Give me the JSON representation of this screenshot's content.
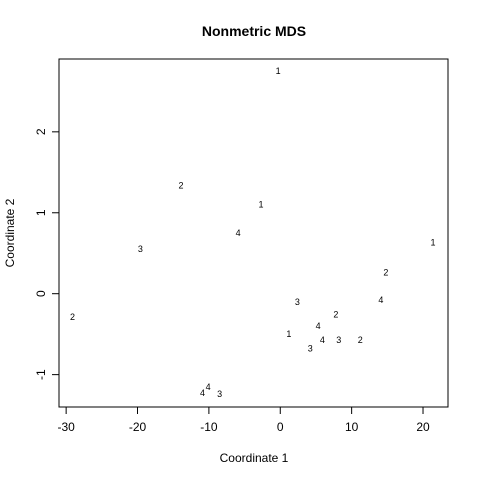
{
  "chart_data": {
    "type": "scatter",
    "title": "Nonmetric MDS",
    "xlabel": "Coordinate 1",
    "ylabel": "Coordinate 2",
    "xlim": [
      -31,
      23.5
    ],
    "ylim": [
      -1.4,
      2.9
    ],
    "xticks": [
      -30,
      -20,
      -10,
      0,
      10,
      20
    ],
    "yticks": [
      -1,
      0,
      1,
      2
    ],
    "marker": "text labels",
    "points": [
      {
        "x": -0.3,
        "y": 2.75,
        "label": "1"
      },
      {
        "x": -13.9,
        "y": 1.34,
        "label": "2"
      },
      {
        "x": -2.7,
        "y": 1.1,
        "label": "1"
      },
      {
        "x": -5.9,
        "y": 0.75,
        "label": "4"
      },
      {
        "x": -19.6,
        "y": 0.55,
        "label": "3"
      },
      {
        "x": 21.4,
        "y": 0.63,
        "label": "1"
      },
      {
        "x": 14.8,
        "y": 0.26,
        "label": "2"
      },
      {
        "x": 14.1,
        "y": -0.08,
        "label": "4"
      },
      {
        "x": 2.4,
        "y": -0.1,
        "label": "3"
      },
      {
        "x": -29.1,
        "y": -0.29,
        "label": "2"
      },
      {
        "x": 7.8,
        "y": -0.26,
        "label": "2"
      },
      {
        "x": 5.3,
        "y": -0.4,
        "label": "4"
      },
      {
        "x": 1.2,
        "y": -0.5,
        "label": "1"
      },
      {
        "x": 5.9,
        "y": -0.57,
        "label": "4"
      },
      {
        "x": 8.2,
        "y": -0.57,
        "label": "3"
      },
      {
        "x": 11.2,
        "y": -0.57,
        "label": "2"
      },
      {
        "x": 4.2,
        "y": -0.68,
        "label": "3"
      },
      {
        "x": -10.1,
        "y": -1.15,
        "label": "4"
      },
      {
        "x": -10.9,
        "y": -1.23,
        "label": "4"
      },
      {
        "x": -8.5,
        "y": -1.24,
        "label": "3"
      }
    ]
  }
}
